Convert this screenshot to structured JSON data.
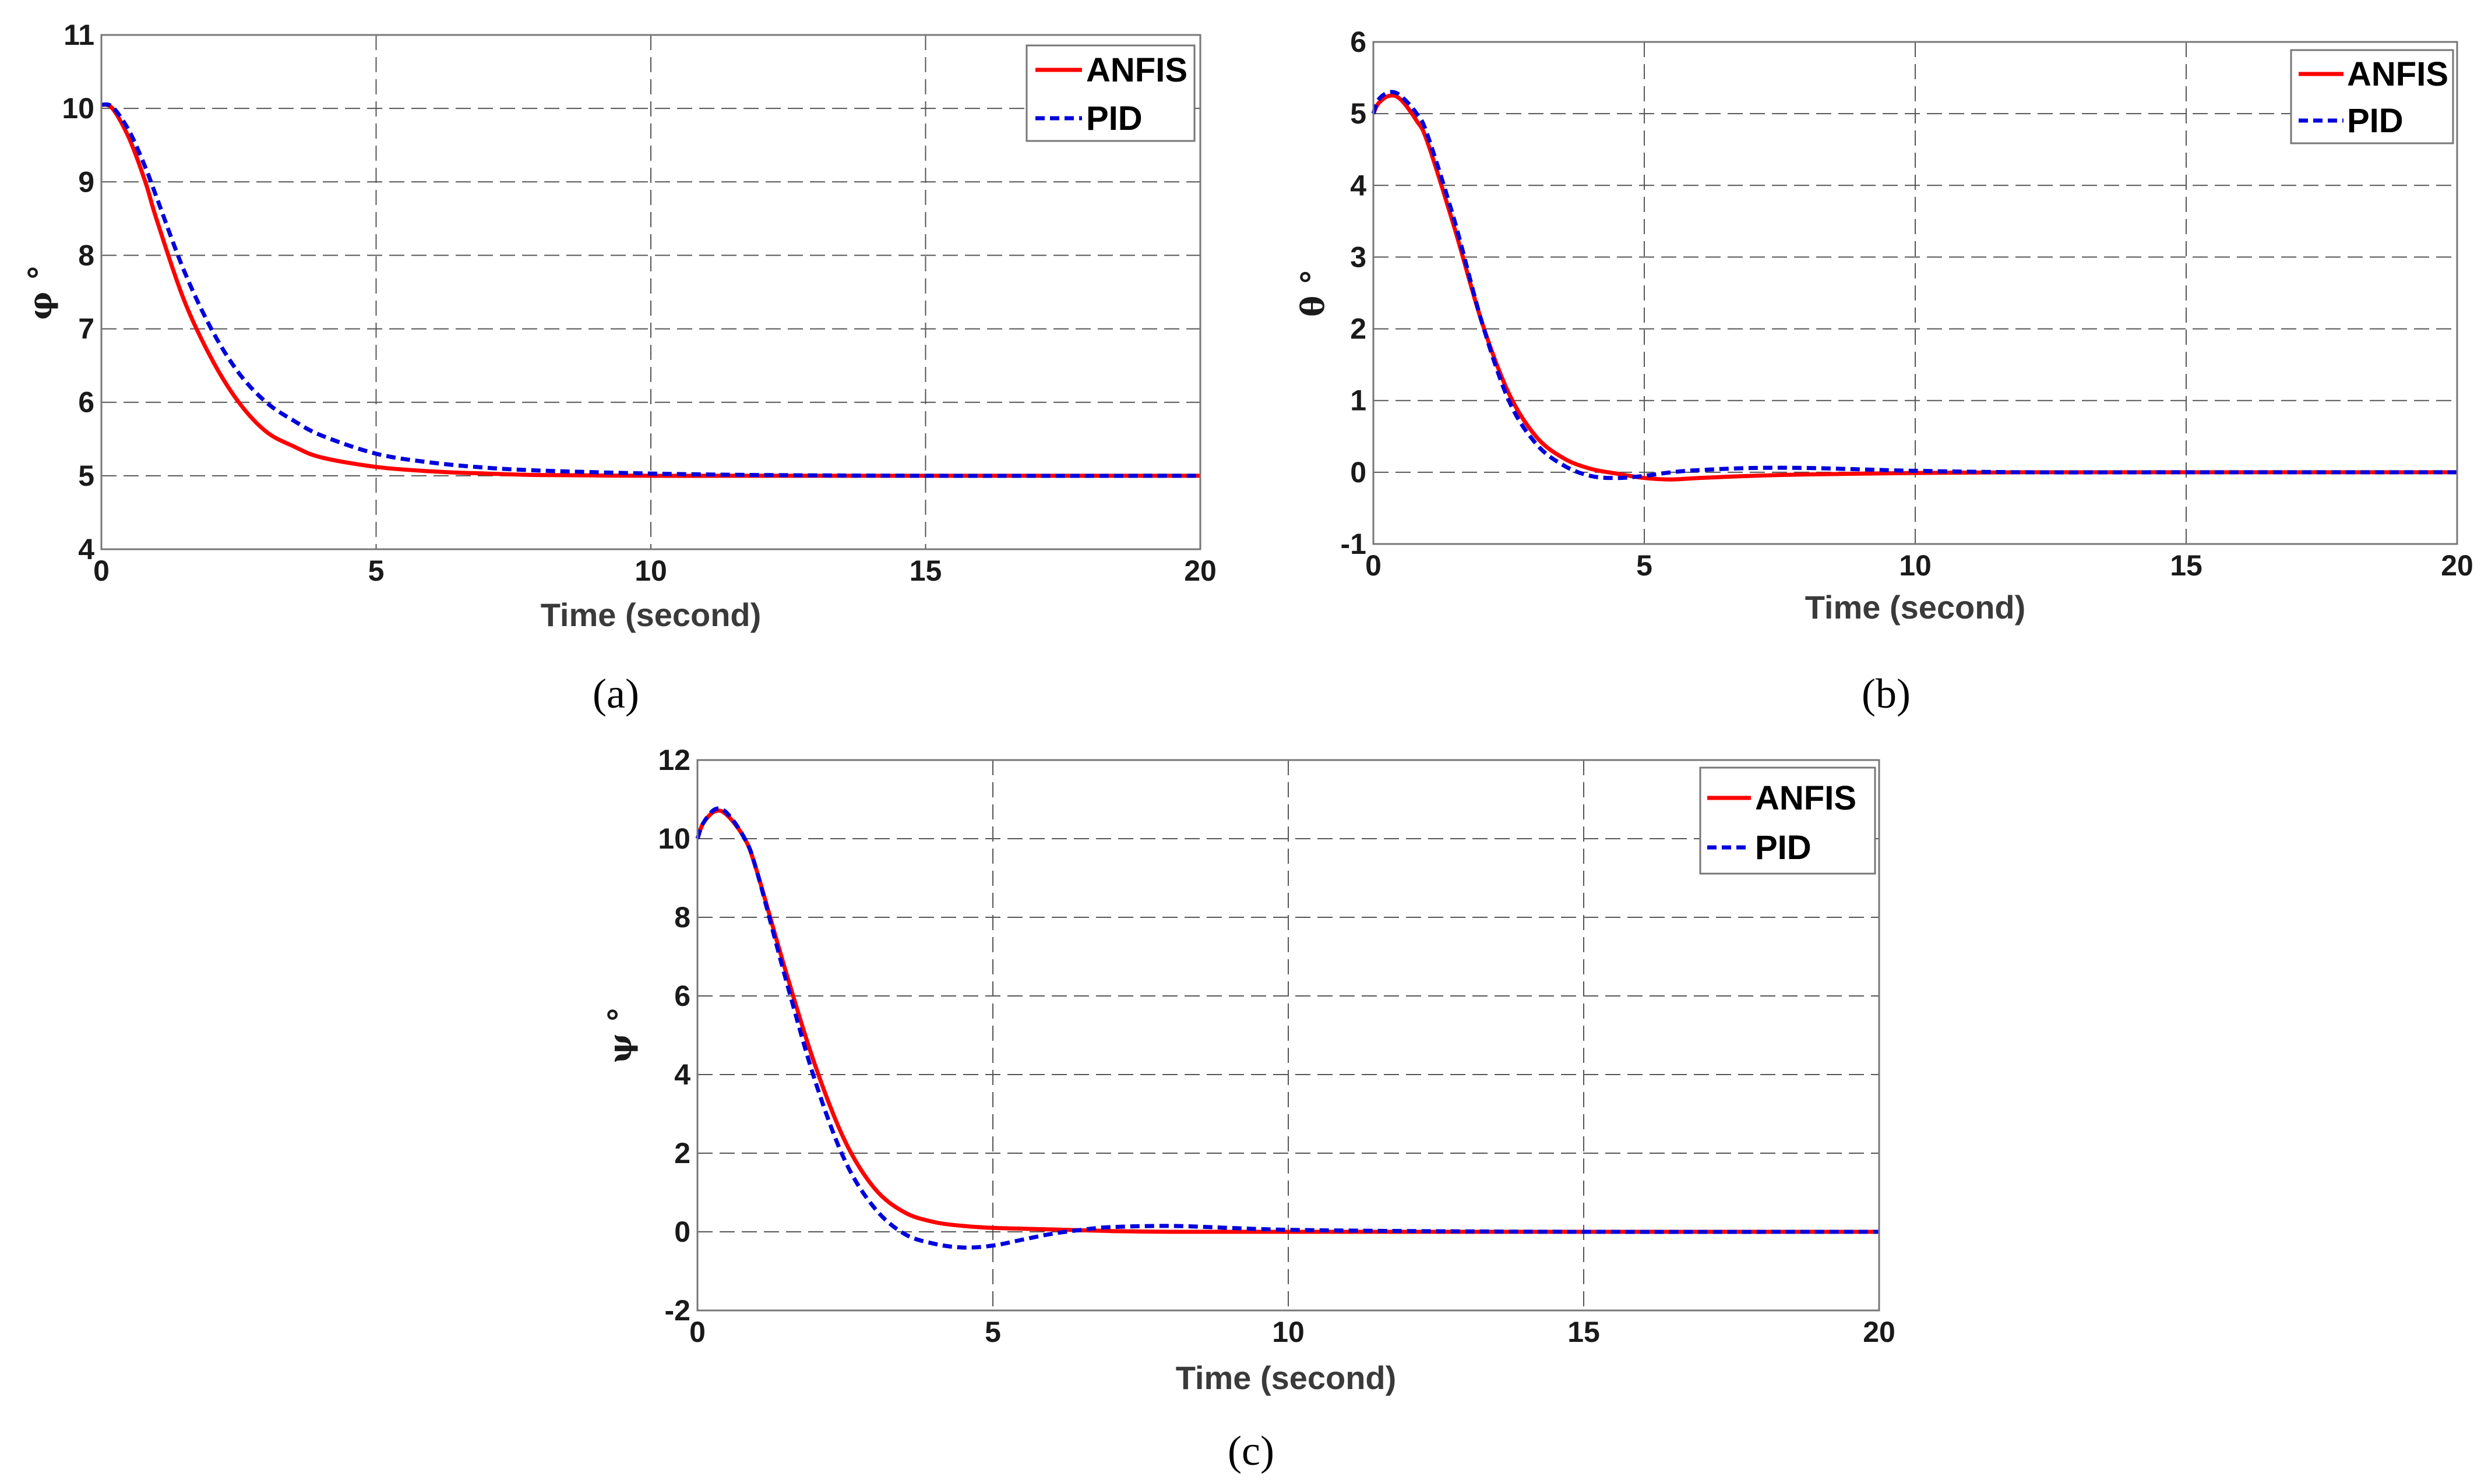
{
  "colors": {
    "anfis": "#ff0000",
    "pid": "#0000dd",
    "grid": "#555555",
    "frame": "#777777"
  },
  "chart_data": [
    {
      "type": "line",
      "caption": "(a)",
      "ylabel": "φ °",
      "xlabel": "Time (second)",
      "xlim": [
        0,
        20
      ],
      "ylim": [
        4,
        11
      ],
      "xticks": [
        "0",
        "5",
        "10",
        "15",
        "20"
      ],
      "yticks": [
        "4",
        "5",
        "6",
        "7",
        "8",
        "9",
        "10",
        "11"
      ],
      "legend": [
        "ANFIS",
        "PID"
      ],
      "legend_position": "top-right",
      "series": [
        {
          "name": "ANFIS",
          "x": [
            0,
            0.2,
            0.5,
            0.8,
            1,
            1.5,
            2,
            2.5,
            3,
            3.5,
            4,
            5,
            6,
            7,
            8,
            10,
            12,
            15,
            20
          ],
          "y": [
            10.05,
            10.0,
            9.6,
            9.0,
            8.5,
            7.4,
            6.6,
            6.0,
            5.6,
            5.4,
            5.25,
            5.12,
            5.06,
            5.03,
            5.01,
            5.0,
            5.0,
            5.0,
            5.0
          ]
        },
        {
          "name": "PID",
          "x": [
            0,
            0.2,
            0.5,
            0.8,
            1,
            1.5,
            2,
            2.5,
            3,
            3.5,
            4,
            5,
            6,
            7,
            8,
            10,
            12,
            15,
            20
          ],
          "y": [
            10.05,
            10.02,
            9.7,
            9.2,
            8.8,
            7.8,
            7.0,
            6.4,
            6.0,
            5.75,
            5.55,
            5.3,
            5.18,
            5.11,
            5.07,
            5.03,
            5.01,
            5.0,
            5.0
          ]
        }
      ]
    },
    {
      "type": "line",
      "caption": "(b)",
      "ylabel": "θ °",
      "xlabel": "Time (second)",
      "xlim": [
        0,
        20
      ],
      "ylim": [
        -1,
        6
      ],
      "xticks": [
        "0",
        "5",
        "10",
        "15",
        "20"
      ],
      "yticks": [
        "-1",
        "0",
        "1",
        "2",
        "3",
        "4",
        "5",
        "6"
      ],
      "legend": [
        "ANFIS",
        "PID"
      ],
      "legend_position": "top-right",
      "series": [
        {
          "name": "ANFIS",
          "x": [
            0,
            0.1,
            0.3,
            0.5,
            0.8,
            1,
            1.5,
            2,
            2.5,
            3,
            3.5,
            4,
            4.5,
            5,
            5.5,
            6,
            7,
            8,
            10,
            12,
            15,
            20
          ],
          "y": [
            5.0,
            5.15,
            5.25,
            5.2,
            4.9,
            4.6,
            3.4,
            2.1,
            1.1,
            0.5,
            0.2,
            0.05,
            -0.02,
            -0.08,
            -0.1,
            -0.08,
            -0.05,
            -0.03,
            -0.01,
            0.0,
            0.0,
            0.0
          ]
        },
        {
          "name": "PID",
          "x": [
            0,
            0.1,
            0.3,
            0.5,
            0.8,
            1,
            1.5,
            2,
            2.5,
            3,
            3.5,
            4,
            4.5,
            5,
            5.5,
            6,
            7,
            8,
            9,
            10,
            12,
            15,
            20
          ],
          "y": [
            5.0,
            5.2,
            5.3,
            5.25,
            5.0,
            4.7,
            3.5,
            2.1,
            1.0,
            0.4,
            0.1,
            -0.05,
            -0.08,
            -0.05,
            0.0,
            0.03,
            0.06,
            0.06,
            0.04,
            0.02,
            0.0,
            0.0,
            0.0
          ]
        }
      ]
    },
    {
      "type": "line",
      "caption": "(c)",
      "ylabel": "ψ °",
      "xlabel": "Time (second)",
      "xlim": [
        0,
        20
      ],
      "ylim": [
        -2,
        12
      ],
      "xticks": [
        "0",
        "5",
        "10",
        "15",
        "20"
      ],
      "yticks": [
        "-2",
        "0",
        "2",
        "4",
        "6",
        "8",
        "10",
        "12"
      ],
      "legend": [
        "ANFIS",
        "PID"
      ],
      "legend_position": "top-right",
      "series": [
        {
          "name": "ANFIS",
          "x": [
            0,
            0.1,
            0.3,
            0.5,
            0.8,
            1,
            1.5,
            2,
            2.5,
            3,
            3.5,
            4,
            4.5,
            5,
            6,
            7,
            8,
            10,
            12,
            15,
            20
          ],
          "y": [
            10.0,
            10.4,
            10.7,
            10.6,
            10.0,
            9.2,
            6.6,
            4.2,
            2.3,
            1.1,
            0.5,
            0.25,
            0.15,
            0.1,
            0.06,
            0.02,
            0.0,
            0.0,
            0.0,
            0.0,
            0.0
          ]
        },
        {
          "name": "PID",
          "x": [
            0,
            0.1,
            0.3,
            0.5,
            0.8,
            1,
            1.5,
            2,
            2.5,
            3,
            3.5,
            4,
            4.5,
            5,
            5.5,
            6,
            6.5,
            7,
            8,
            9,
            10,
            12,
            15,
            20
          ],
          "y": [
            10.0,
            10.4,
            10.75,
            10.65,
            10.0,
            9.2,
            6.4,
            3.8,
            1.8,
            0.6,
            -0.05,
            -0.3,
            -0.4,
            -0.35,
            -0.2,
            -0.05,
            0.05,
            0.12,
            0.15,
            0.1,
            0.05,
            0.02,
            0.0,
            0.0
          ]
        }
      ]
    }
  ]
}
